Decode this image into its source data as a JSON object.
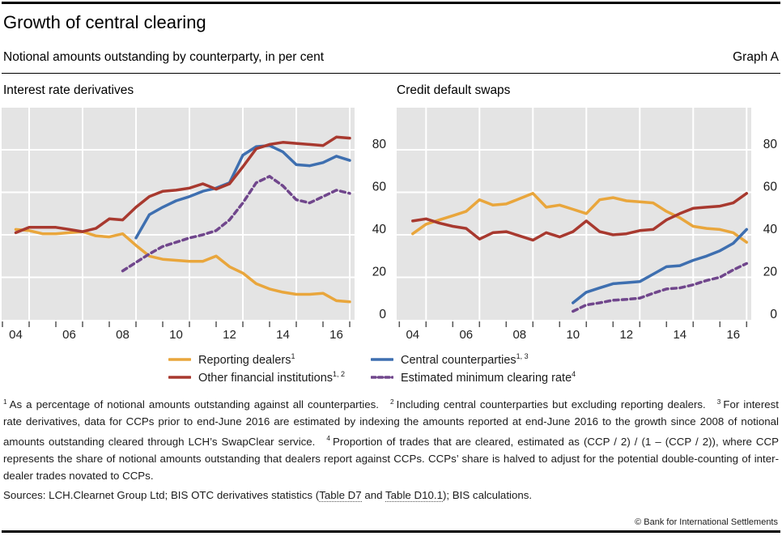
{
  "header": {
    "title": "Growth of central clearing",
    "subtitle": "Notional amounts outstanding by counterparty, in per cent",
    "graph_label": "Graph A"
  },
  "colors": {
    "orange": "#E9A63C",
    "red": "#A8392F",
    "blue": "#3E6FB0",
    "purple": "#70468C",
    "plot_bg": "#E4E4E4",
    "grid": "#FFFFFF",
    "axis_tick": "#555555",
    "text": "#1B1B1B"
  },
  "chart_data": [
    {
      "type": "line",
      "title": "Interest rate derivatives",
      "ylim": [
        0,
        100
      ],
      "yticks": [
        0,
        20,
        40,
        60,
        80
      ],
      "x_years": {
        "first_tick": 2004,
        "last_tick": 2017
      },
      "xtick_labels": [
        {
          "year": 2004,
          "label": "04"
        },
        {
          "year": 2006,
          "label": "06"
        },
        {
          "year": 2008,
          "label": "08"
        },
        {
          "year": 2010,
          "label": "10"
        },
        {
          "year": 2012,
          "label": "12"
        },
        {
          "year": 2014,
          "label": "14"
        },
        {
          "year": 2016,
          "label": "16"
        }
      ],
      "grid_years": [
        2005,
        2007,
        2009,
        2011,
        2013,
        2015,
        2017
      ],
      "x_step": 0.5,
      "grid": true,
      "legend": "shared-bottom",
      "series": [
        {
          "name": "Reporting dealers",
          "color": "orange",
          "dashed": false,
          "z": 0,
          "x_start": 2004.5,
          "values": [
            42.5,
            42,
            40.5,
            40.5,
            41,
            41.5,
            39.5,
            39,
            40.5,
            35,
            30,
            28.5,
            28,
            27.5,
            27.5,
            30,
            25,
            22,
            17,
            14.5,
            13,
            12,
            12,
            12.5,
            9,
            8.5
          ]
        },
        {
          "name": "Other financial institutions",
          "color": "red",
          "dashed": false,
          "z": 2,
          "x_start": 2004.5,
          "values": [
            41,
            43.5,
            43.5,
            43.5,
            42.5,
            41.5,
            43,
            47.5,
            47,
            53,
            58,
            60.5,
            61,
            62,
            64,
            61.5,
            64,
            72,
            80.5,
            82.5,
            83.5,
            83,
            82.5,
            82,
            86,
            85.5
          ]
        },
        {
          "name": "Central counterparties",
          "color": "blue",
          "dashed": false,
          "z": 1,
          "x_start": 2009,
          "values": [
            38.5,
            49.5,
            53,
            56,
            58,
            60.5,
            62,
            64.5,
            77.5,
            81.5,
            82,
            79,
            73,
            72.5,
            74,
            77,
            75
          ]
        },
        {
          "name": "Estimated minimum clearing rate",
          "color": "purple",
          "dashed": true,
          "z": 3,
          "x_start": 2008.5,
          "values": [
            23,
            27,
            31,
            34.5,
            36.5,
            38.5,
            40,
            42,
            47,
            55,
            64.5,
            67.5,
            63,
            56.5,
            55,
            58,
            61,
            59.5
          ]
        }
      ]
    },
    {
      "type": "line",
      "title": "Credit default swaps",
      "ylim": [
        0,
        100
      ],
      "yticks": [
        0,
        20,
        40,
        60,
        80
      ],
      "x_years": {
        "first_tick": 2004,
        "last_tick": 2017
      },
      "xtick_labels": [
        {
          "year": 2004,
          "label": "04"
        },
        {
          "year": 2006,
          "label": "06"
        },
        {
          "year": 2008,
          "label": "08"
        },
        {
          "year": 2010,
          "label": "10"
        },
        {
          "year": 2012,
          "label": "12"
        },
        {
          "year": 2014,
          "label": "14"
        },
        {
          "year": 2016,
          "label": "16"
        }
      ],
      "grid_years": [
        2005,
        2007,
        2009,
        2011,
        2013,
        2015,
        2017
      ],
      "x_step": 0.5,
      "grid": true,
      "legend": "shared-bottom",
      "series": [
        {
          "name": "Reporting dealers",
          "color": "orange",
          "dashed": false,
          "z": 0,
          "x_start": 2004.5,
          "values": [
            40.5,
            45,
            47,
            49,
            51,
            56.5,
            54,
            54.5,
            57,
            59.5,
            53,
            54,
            52,
            50,
            56.5,
            57.5,
            56,
            55.5,
            55,
            51,
            48,
            44,
            43,
            42.5,
            41,
            36.5
          ]
        },
        {
          "name": "Other financial institutions",
          "color": "red",
          "dashed": false,
          "z": 2,
          "x_start": 2004.5,
          "values": [
            46.5,
            47.5,
            45.5,
            44,
            43,
            38,
            41,
            41.5,
            39.5,
            37.5,
            41,
            39,
            41.5,
            46.5,
            41.5,
            40,
            40.5,
            42,
            42.5,
            47,
            50,
            52.5,
            53,
            53.5,
            55,
            59.5
          ]
        },
        {
          "name": "Central counterparties",
          "color": "blue",
          "dashed": false,
          "z": 1,
          "x_start": 2010.5,
          "values": [
            8,
            13,
            15,
            17,
            17.5,
            18,
            21.5,
            25,
            25.5,
            28,
            30,
            32.5,
            36,
            42.5
          ]
        },
        {
          "name": "Estimated minimum clearing rate",
          "color": "purple",
          "dashed": true,
          "z": 3,
          "x_start": 2010.5,
          "values": [
            4,
            7,
            8,
            9.2,
            9.6,
            10.2,
            12.5,
            14.5,
            15,
            16.5,
            18.5,
            20,
            23.5,
            26.5
          ]
        }
      ]
    }
  ],
  "legend": [
    {
      "label": "Reporting dealers",
      "sup": "1",
      "color": "orange",
      "dashed": false,
      "col": 1
    },
    {
      "label": "Other financial institutions",
      "sup": "1, 2",
      "color": "red",
      "dashed": false,
      "col": 1
    },
    {
      "label": "Central counterparties",
      "sup": "1, 3",
      "color": "blue",
      "dashed": false,
      "col": 2
    },
    {
      "label": "Estimated minimum clearing rate",
      "sup": "4",
      "color": "purple",
      "dashed": true,
      "col": 2
    }
  ],
  "footnotes": [
    {
      "sup": "1",
      "text": "As a percentage of notional amounts outstanding against all counterparties."
    },
    {
      "sup": "2",
      "text": "Including central counterparties but excluding reporting dealers."
    },
    {
      "sup": "3",
      "text": "For interest rate derivatives, data for CCPs prior to end-June 2016 are estimated by indexing the amounts reported at end-June 2016 to the growth since 2008 of notional amounts outstanding cleared through LCH’s SwapClear service."
    },
    {
      "sup": "4",
      "text": "Proportion of trades that are cleared, estimated as (CCP / 2) / (1 – (CCP / 2)), where CCP represents the share of notional amounts outstanding that dealers report against CCPs. CCPs’ share is halved to adjust for the potential double-counting of inter-dealer trades novated to CCPs."
    }
  ],
  "sources": {
    "prefix": "Sources: LCH.Clearnet Group Ltd; BIS OTC derivatives statistics (",
    "link1": "Table D7",
    "middle": " and ",
    "link2": "Table D10.1",
    "suffix": "); BIS calculations."
  },
  "copyright": "© Bank for International Settlements"
}
